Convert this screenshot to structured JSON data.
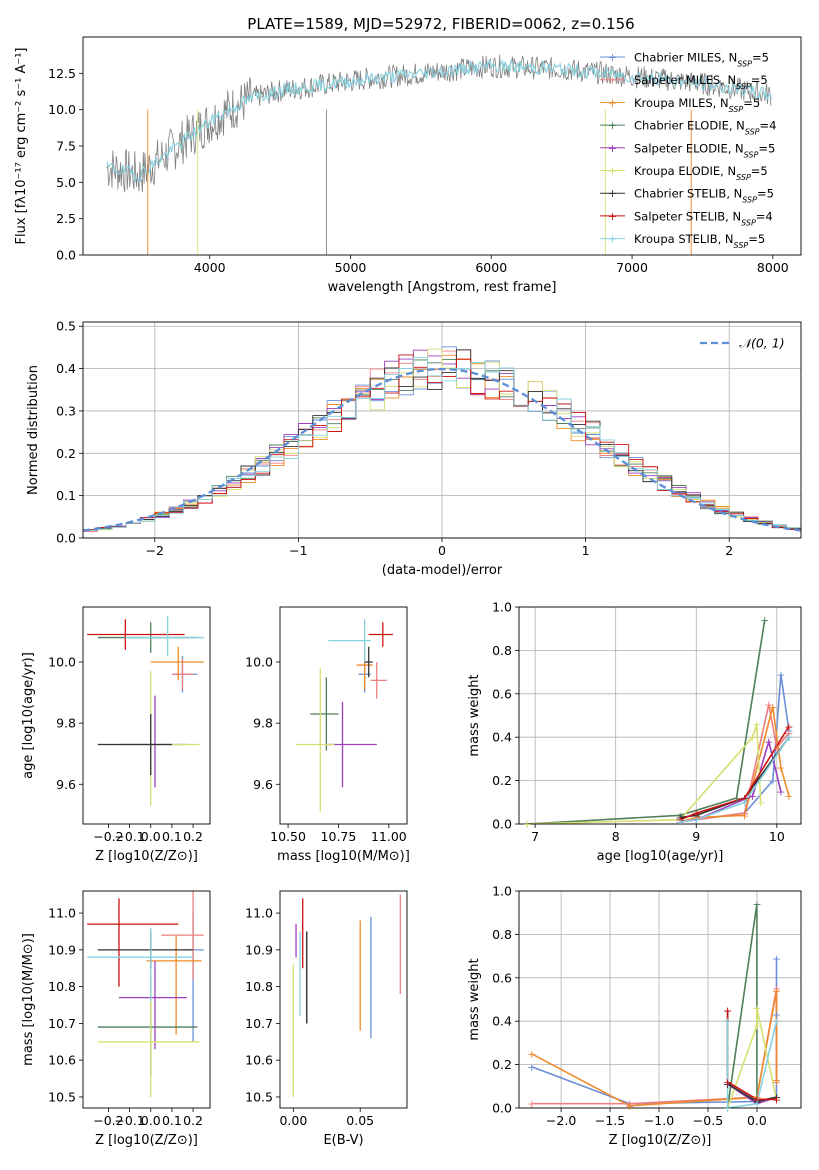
{
  "figure": {
    "title": "PLATE=1589, MJD=52972, FIBERID=0062, z=0.156"
  },
  "colors": {
    "Chabrier MILES": "#6a8fd8",
    "Salpeter MILES": "#ef7f7f",
    "Kroupa MILES": "#ef8a2a",
    "Chabrier ELODIE": "#4f7f5a",
    "Salpeter ELODIE": "#9d3fbf",
    "Kroupa ELODIE": "#d6e070",
    "Chabrier STELIB": "#333333",
    "Salpeter STELIB": "#cc1111",
    "Kroupa STELIB": "#86d2e0",
    "data": "#808080",
    "gaussian": "#5b8fd9"
  },
  "chart_data": [
    {
      "type": "line",
      "panel": "spectrum",
      "xlabel": "wavelength [Angstrom, rest frame]",
      "ylabel": "Flux [fλ10⁻¹⁷ erg cm⁻² s⁻¹ A⁻¹]",
      "xlim": [
        3100,
        8200
      ],
      "ylim": [
        0,
        15
      ],
      "xticks": [
        4000,
        5000,
        6000,
        7000,
        8000
      ],
      "yticks": [
        0.0,
        2.5,
        5.0,
        7.5,
        10.0,
        12.5
      ],
      "legend_position": "right",
      "series": [
        {
          "name": "Chabrier MILES, N_SSP=5"
        },
        {
          "name": "Salpeter MILES, N_SSP=5"
        },
        {
          "name": "Kroupa MILES, N_SSP=5"
        },
        {
          "name": "Chabrier ELODIE, N_SSP=4"
        },
        {
          "name": "Salpeter ELODIE, N_SSP=5"
        },
        {
          "name": "Kroupa ELODIE, N_SSP=5"
        },
        {
          "name": "Chabrier STELIB, N_SSP=5"
        },
        {
          "name": "Salpeter STELIB, N_SSP=4"
        },
        {
          "name": "Kroupa STELIB, N_SSP=5"
        }
      ],
      "continuum": {
        "x": [
          3300,
          3500,
          3700,
          3900,
          4100,
          4300,
          4500,
          4800,
          5100,
          5500,
          6000,
          6500,
          7000,
          7500,
          8000
        ],
        "y": [
          6.0,
          5.5,
          7.0,
          8.5,
          9.8,
          10.8,
          11.3,
          11.7,
          12.1,
          12.5,
          13.0,
          12.8,
          12.3,
          11.8,
          11.0
        ]
      }
    },
    {
      "type": "histogram",
      "panel": "residuals",
      "xlabel": "(data-model)/error",
      "ylabel": "Normed distribution",
      "xlim": [
        -2.5,
        2.5
      ],
      "ylim": [
        0,
        0.51
      ],
      "xticks": [
        -2,
        -1,
        0,
        1,
        2
      ],
      "yticks": [
        0.0,
        0.1,
        0.2,
        0.3,
        0.4,
        0.5
      ],
      "grid": true,
      "legend_position": "top-right",
      "gaussian_label": "𝒩(0, 1)"
    },
    {
      "type": "errorbar",
      "panel": "age-vs-Z",
      "xlabel": "Z [log10(Z/Z⊙)]",
      "ylabel": "age  [log10(age/yr)]",
      "xlim": [
        -0.32,
        0.28
      ],
      "ylim": [
        9.47,
        10.18
      ],
      "xticks": [
        -0.2,
        -0.1,
        0.0,
        0.1,
        0.2
      ],
      "yticks": [
        9.6,
        9.8,
        10.0
      ],
      "points": [
        {
          "model": "Chabrier MILES",
          "x": 0.15,
          "xerr": [
            0.05,
            0.07
          ],
          "y": 9.96,
          "yerr": [
            0.06,
            0.06
          ]
        },
        {
          "model": "Salpeter MILES",
          "x": 0.15,
          "xerr": [
            0.05,
            0.05
          ],
          "y": 9.96,
          "yerr": [
            0.05,
            0.05
          ]
        },
        {
          "model": "Kroupa MILES",
          "x": 0.13,
          "xerr": [
            0.13,
            0.12
          ],
          "y": 10.0,
          "yerr": [
            0.06,
            0.05
          ]
        },
        {
          "model": "Chabrier ELODIE",
          "x": 0.0,
          "xerr": [
            0.25,
            0.22
          ],
          "y": 10.08,
          "yerr": [
            0.05,
            0.05
          ]
        },
        {
          "model": "Salpeter ELODIE",
          "x": 0.02,
          "xerr": [
            0.17,
            0.15
          ],
          "y": 9.73,
          "yerr": [
            0.14,
            0.16
          ]
        },
        {
          "model": "Kroupa ELODIE",
          "x": 0.0,
          "xerr": [
            0.25,
            0.23
          ],
          "y": 9.73,
          "yerr": [
            0.2,
            0.24
          ]
        },
        {
          "model": "Chabrier STELIB",
          "x": 0.0,
          "xerr": [
            0.25,
            0.1
          ],
          "y": 9.73,
          "yerr": [
            0.1,
            0.1
          ]
        },
        {
          "model": "Salpeter STELIB",
          "x": -0.12,
          "xerr": [
            0.18,
            0.28
          ],
          "y": 10.09,
          "yerr": [
            0.05,
            0.05
          ]
        },
        {
          "model": "Kroupa STELIB",
          "x": 0.08,
          "xerr": [
            0.2,
            0.17
          ],
          "y": 10.08,
          "yerr": [
            0.06,
            0.07
          ]
        }
      ]
    },
    {
      "type": "errorbar",
      "panel": "age-vs-mass",
      "xlabel": "mass [log10(M/M⊙)]",
      "ylabel": "",
      "xlim": [
        10.46,
        11.09
      ],
      "ylim": [
        9.47,
        10.18
      ],
      "xticks": [
        10.5,
        10.75,
        11.0
      ],
      "yticks": [
        9.6,
        9.8,
        10.0
      ],
      "points": [
        {
          "model": "Chabrier MILES",
          "x": 10.88,
          "xerr": [
            0.03,
            0.03
          ],
          "y": 9.96,
          "yerr": [
            0.06,
            0.06
          ]
        },
        {
          "model": "Salpeter MILES",
          "x": 10.94,
          "xerr": [
            0.03,
            0.05
          ],
          "y": 9.94,
          "yerr": [
            0.06,
            0.06
          ]
        },
        {
          "model": "Kroupa MILES",
          "x": 10.88,
          "xerr": [
            0.04,
            0.04
          ],
          "y": 9.99,
          "yerr": [
            0.08,
            0.08
          ]
        },
        {
          "model": "Chabrier ELODIE",
          "x": 10.69,
          "xerr": [
            0.08,
            0.06
          ],
          "y": 9.83,
          "yerr": [
            0.12,
            0.12
          ]
        },
        {
          "model": "Salpeter ELODIE",
          "x": 10.77,
          "xerr": [
            0.08,
            0.17
          ],
          "y": 9.73,
          "yerr": [
            0.14,
            0.14
          ]
        },
        {
          "model": "Kroupa ELODIE",
          "x": 10.66,
          "xerr": [
            0.12,
            0.07
          ],
          "y": 9.73,
          "yerr": [
            0.22,
            0.25
          ]
        },
        {
          "model": "Chabrier STELIB",
          "x": 10.9,
          "xerr": [
            0.02,
            0.02
          ],
          "y": 10.0,
          "yerr": [
            0.05,
            0.05
          ]
        },
        {
          "model": "Salpeter STELIB",
          "x": 10.97,
          "xerr": [
            0.07,
            0.05
          ],
          "y": 10.09,
          "yerr": [
            0.04,
            0.04
          ]
        },
        {
          "model": "Kroupa STELIB",
          "x": 10.88,
          "xerr": [
            0.18,
            0.03
          ],
          "y": 10.07,
          "yerr": [
            0.07,
            0.07
          ]
        }
      ]
    },
    {
      "type": "line",
      "panel": "mass-weight-vs-age",
      "xlabel": "age  [log10(age/yr)]",
      "ylabel": "mass weight",
      "xlim": [
        6.8,
        10.3
      ],
      "ylim": [
        0,
        1
      ],
      "xticks": [
        7,
        8,
        9,
        10
      ],
      "yticks": [
        0.0,
        0.2,
        0.4,
        0.6,
        0.8,
        1.0
      ],
      "grid": true,
      "series": [
        {
          "model": "Chabrier MILES",
          "x": [
            8.8,
            9.0,
            9.6,
            9.95,
            10.05,
            10.15
          ],
          "y": [
            0.01,
            0.02,
            0.05,
            0.2,
            0.69,
            0.43
          ]
        },
        {
          "model": "Salpeter MILES",
          "x": [
            8.8,
            9.0,
            9.6,
            9.9,
            10.0,
            10.15
          ],
          "y": [
            0.01,
            0.02,
            0.05,
            0.55,
            0.35,
            0.42
          ]
        },
        {
          "model": "Kroupa MILES",
          "x": [
            8.8,
            9.0,
            9.6,
            9.95,
            10.05,
            10.15
          ],
          "y": [
            0.01,
            0.03,
            0.04,
            0.54,
            0.26,
            0.13
          ]
        },
        {
          "model": "Chabrier ELODIE",
          "x": [
            6.9,
            8.8,
            9.5,
            9.85
          ],
          "y": [
            0.0,
            0.04,
            0.12,
            0.94
          ]
        },
        {
          "model": "Salpeter ELODIE",
          "x": [
            8.8,
            9.0,
            9.7,
            9.9,
            10.05
          ],
          "y": [
            0.01,
            0.02,
            0.13,
            0.38,
            0.15
          ]
        },
        {
          "model": "Kroupa ELODIE",
          "x": [
            6.9,
            8.8,
            9.7,
            9.75,
            9.8
          ],
          "y": [
            0.0,
            0.02,
            0.4,
            0.46,
            0.1
          ]
        },
        {
          "model": "Chabrier STELIB",
          "x": [
            8.8,
            9.0,
            9.6,
            10.15
          ],
          "y": [
            0.03,
            0.04,
            0.12,
            0.4
          ]
        },
        {
          "model": "Salpeter STELIB",
          "x": [
            8.8,
            9.0,
            9.6,
            10.15
          ],
          "y": [
            0.02,
            0.05,
            0.12,
            0.45
          ]
        },
        {
          "model": "Kroupa STELIB",
          "x": [
            8.8,
            9.0,
            9.6,
            10.15
          ],
          "y": [
            0.01,
            0.02,
            0.1,
            0.4
          ]
        }
      ]
    },
    {
      "type": "errorbar",
      "panel": "mass-vs-Z",
      "xlabel": "Z [log10(Z/Z⊙)]",
      "ylabel": "mass [log10(M/M⊙)]",
      "xlim": [
        -0.32,
        0.28
      ],
      "ylim": [
        10.47,
        11.06
      ],
      "xticks": [
        -0.2,
        -0.1,
        0.0,
        0.1,
        0.2
      ],
      "yticks": [
        10.5,
        10.6,
        10.7,
        10.8,
        10.9,
        11.0
      ],
      "points": [
        {
          "model": "Chabrier MILES",
          "x": 0.2,
          "xerr": [
            0.05,
            0.05
          ],
          "y": 10.9,
          "yerr": [
            0.25,
            0.1
          ]
        },
        {
          "model": "Salpeter MILES",
          "x": 0.2,
          "xerr": [
            0.15,
            0.05
          ],
          "y": 10.94,
          "yerr": [
            0.12,
            0.12
          ]
        },
        {
          "model": "Kroupa MILES",
          "x": 0.12,
          "xerr": [
            0.14,
            0.12
          ],
          "y": 10.87,
          "yerr": [
            0.2,
            0.07
          ]
        },
        {
          "model": "Chabrier ELODIE",
          "x": 0.0,
          "xerr": [
            0.25,
            0.22
          ],
          "y": 10.69,
          "yerr": [
            0.13,
            0.14
          ]
        },
        {
          "model": "Salpeter ELODIE",
          "x": 0.02,
          "xerr": [
            0.17,
            0.15
          ],
          "y": 10.77,
          "yerr": [
            0.14,
            0.1
          ]
        },
        {
          "model": "Kroupa ELODIE",
          "x": 0.0,
          "xerr": [
            0.25,
            0.23
          ],
          "y": 10.65,
          "yerr": [
            0.15,
            0.22
          ]
        },
        {
          "model": "Chabrier STELIB",
          "x": 0.0,
          "xerr": [
            0.25,
            0.2
          ],
          "y": 10.9,
          "yerr": [
            0.05,
            0.05
          ]
        },
        {
          "model": "Salpeter STELIB",
          "x": -0.15,
          "xerr": [
            0.15,
            0.28
          ],
          "y": 10.97,
          "yerr": [
            0.17,
            0.07
          ]
        },
        {
          "model": "Kroupa STELIB",
          "x": 0.0,
          "xerr": [
            0.3,
            0.2
          ],
          "y": 10.88,
          "yerr": [
            0.12,
            0.08
          ]
        }
      ]
    },
    {
      "type": "errorbar",
      "panel": "mass-vs-ebv",
      "xlabel": "E(B-V)",
      "ylabel": "",
      "xlim": [
        -0.01,
        0.085
      ],
      "ylim": [
        10.47,
        11.06
      ],
      "xticks": [
        0.0,
        0.05
      ],
      "yticks": [
        10.5,
        10.6,
        10.7,
        10.8,
        10.9,
        11.0
      ],
      "points": [
        {
          "model": "Chabrier MILES",
          "x": 0.058,
          "yerr": [
            10.66,
            10.99
          ]
        },
        {
          "model": "Salpeter MILES",
          "x": 0.08,
          "yerr": [
            10.78,
            11.05
          ]
        },
        {
          "model": "Kroupa MILES",
          "x": 0.05,
          "yerr": [
            10.68,
            10.98
          ]
        },
        {
          "model": "Chabrier ELODIE",
          "x": 0.01,
          "yerr": [
            10.7,
            10.95
          ]
        },
        {
          "model": "Salpeter ELODIE",
          "x": 0.002,
          "yerr": [
            10.88,
            10.97
          ]
        },
        {
          "model": "Kroupa ELODIE",
          "x": 0.0,
          "yerr": [
            10.5,
            10.86
          ]
        },
        {
          "model": "Chabrier STELIB",
          "x": 0.01,
          "yerr": [
            10.7,
            10.95
          ]
        },
        {
          "model": "Salpeter STELIB",
          "x": 0.007,
          "yerr": [
            10.85,
            11.04
          ]
        },
        {
          "model": "Kroupa STELIB",
          "x": 0.005,
          "yerr": [
            10.72,
            10.95
          ]
        }
      ]
    },
    {
      "type": "line",
      "panel": "mass-weight-vs-Z",
      "xlabel": "Z [log10(Z/Z⊙)]",
      "ylabel": "mass weight",
      "xlim": [
        -2.43,
        0.45
      ],
      "ylim": [
        0,
        1
      ],
      "xticks": [
        -2.0,
        -1.5,
        -1.0,
        -0.5,
        0.0
      ],
      "yticks": [
        0.0,
        0.2,
        0.4,
        0.6,
        0.8,
        1.0
      ],
      "grid": true,
      "series": [
        {
          "model": "Chabrier MILES",
          "x": [
            -2.3,
            -1.3,
            0.0,
            0.2,
            0.2,
            0.2
          ],
          "y": [
            0.19,
            0.02,
            0.03,
            0.05,
            0.69,
            0.43
          ]
        },
        {
          "model": "Salpeter MILES",
          "x": [
            -2.3,
            -1.3,
            0.0,
            0.2,
            0.2
          ],
          "y": [
            0.02,
            0.02,
            0.05,
            0.55,
            0.12
          ]
        },
        {
          "model": "Kroupa MILES",
          "x": [
            -2.3,
            -1.3,
            0.0,
            0.2,
            0.2
          ],
          "y": [
            0.25,
            0.01,
            0.05,
            0.54,
            0.13
          ]
        },
        {
          "model": "Chabrier ELODIE",
          "x": [
            -0.3,
            0.0,
            0.0,
            0.2
          ],
          "y": [
            0.0,
            0.94,
            0.03,
            0.05
          ]
        },
        {
          "model": "Salpeter ELODIE",
          "x": [
            -0.3,
            0.0,
            0.2
          ],
          "y": [
            0.11,
            0.02,
            0.05
          ]
        },
        {
          "model": "Kroupa ELODIE",
          "x": [
            -0.3,
            0.0,
            0.0,
            0.2
          ],
          "y": [
            0.0,
            0.38,
            0.46,
            0.04
          ]
        },
        {
          "model": "Chabrier STELIB",
          "x": [
            -0.3,
            -0.3,
            0.0,
            0.2
          ],
          "y": [
            0.45,
            0.11,
            0.03,
            0.05
          ]
        },
        {
          "model": "Salpeter STELIB",
          "x": [
            -0.3,
            -0.3,
            0.0,
            0.2
          ],
          "y": [
            0.45,
            0.12,
            0.04,
            0.04
          ]
        },
        {
          "model": "Kroupa STELIB",
          "x": [
            -0.3,
            -0.3,
            0.0,
            0.2
          ],
          "y": [
            0.4,
            0.0,
            0.02,
            0.4
          ]
        }
      ]
    }
  ]
}
